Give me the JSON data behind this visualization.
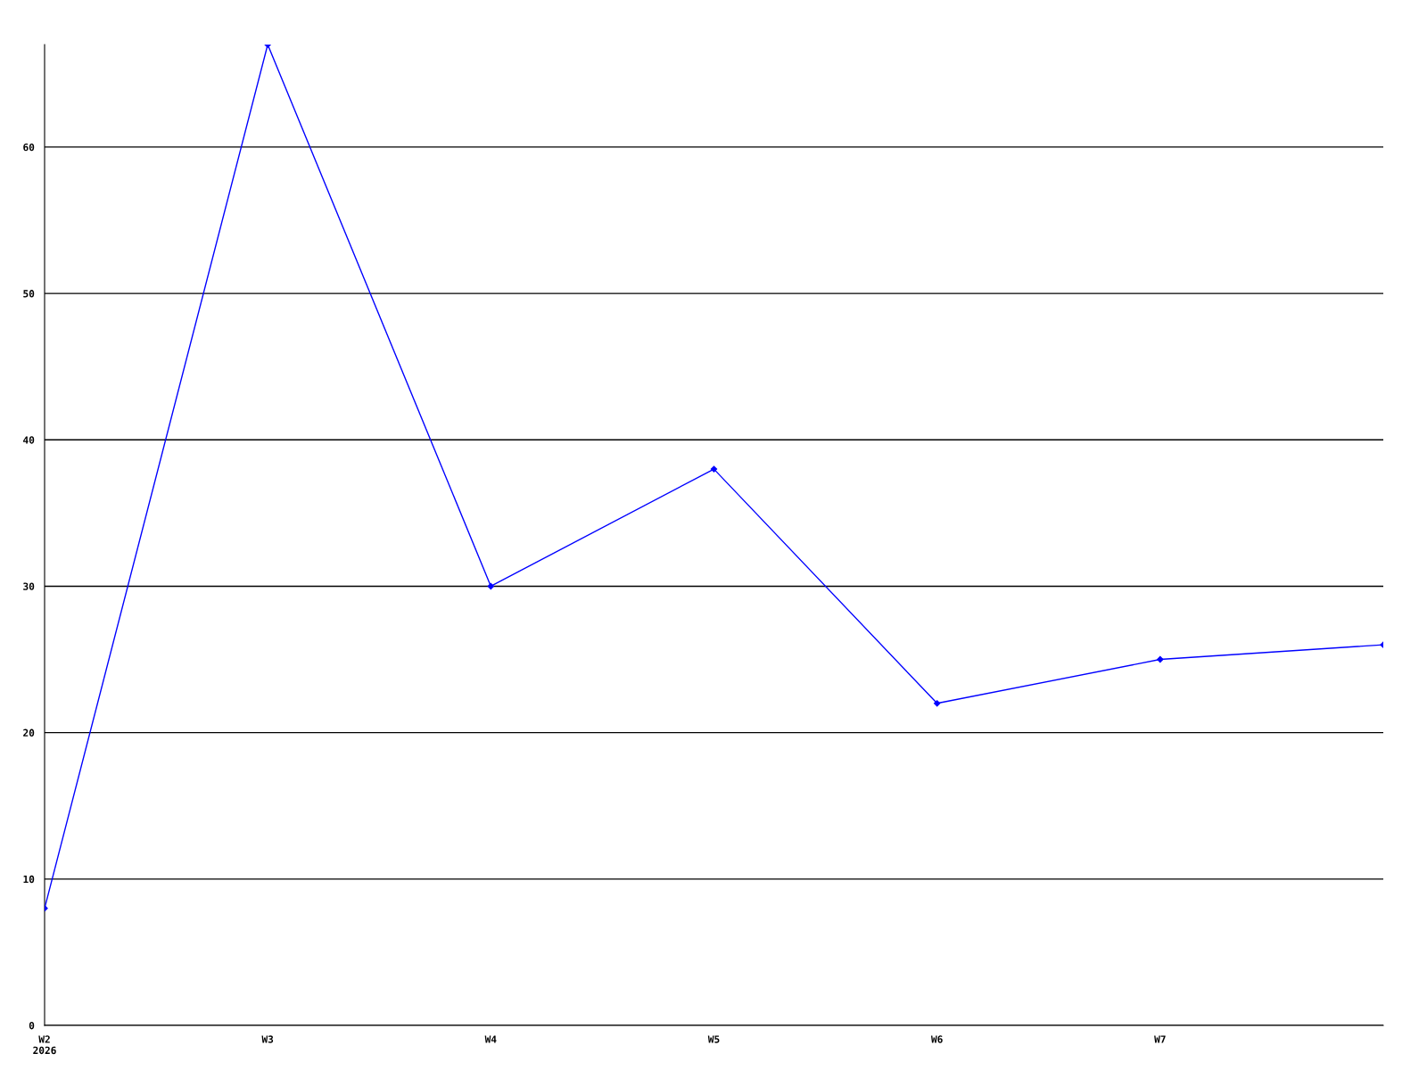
{
  "chart_data": {
    "type": "line",
    "categories": [
      "W2\n2026",
      "W3",
      "W4",
      "W5",
      "W6",
      "W7",
      null
    ],
    "series": [
      {
        "color": "#0000ff",
        "values": [
          8,
          67,
          30,
          38,
          22,
          25,
          26
        ]
      }
    ],
    "ylim": [
      0,
      67
    ],
    "yticks": [
      0,
      10,
      20,
      30,
      40,
      50,
      60
    ],
    "grid": "y",
    "marker": "diamond",
    "line_style": "solid"
  }
}
